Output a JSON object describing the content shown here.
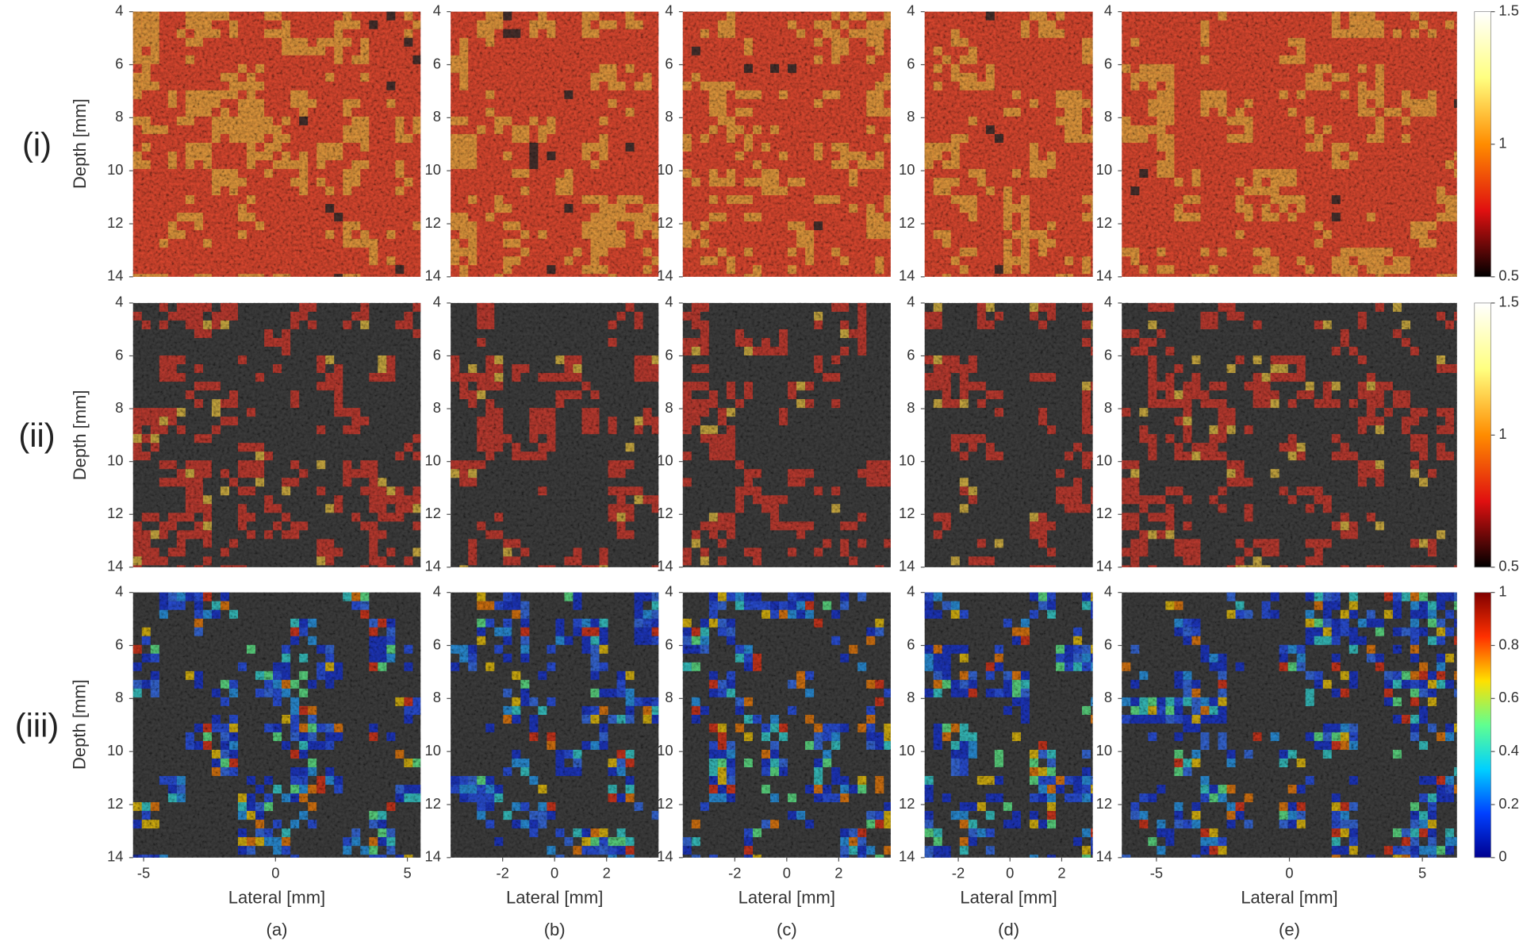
{
  "rows": [
    {
      "label": "(i)"
    },
    {
      "label": "(ii)"
    },
    {
      "label": "(iii)"
    }
  ],
  "columns": [
    {
      "label": "(a)",
      "xlim": [
        -5.4,
        5.5
      ],
      "xticks": [
        -5,
        0,
        5
      ]
    },
    {
      "label": "(b)",
      "xlim": [
        -4,
        4
      ],
      "xticks": [
        -2,
        0,
        2
      ]
    },
    {
      "label": "(c)",
      "xlim": [
        -4,
        4
      ],
      "xticks": [
        -2,
        0,
        2
      ]
    },
    {
      "label": "(d)",
      "xlim": [
        -3.3,
        3.2
      ],
      "xticks": [
        -2,
        0,
        2
      ]
    },
    {
      "label": "(e)",
      "xlim": [
        -6.3,
        6.3
      ],
      "xticks": [
        -5,
        0,
        5
      ]
    }
  ],
  "y_axis": {
    "label": "Depth [mm]",
    "ylim": [
      4,
      14
    ],
    "yticks": [
      4,
      6,
      8,
      10,
      12,
      14
    ]
  },
  "x_axis_label": "Lateral [mm]",
  "colorbars": [
    {
      "lim": [
        0.5,
        1.5
      ],
      "ticks": [
        0.5,
        1,
        1.5
      ],
      "colors": [
        "#000000",
        "#e01010",
        "#ff8c00",
        "#ffff80",
        "#ffffff"
      ]
    },
    {
      "lim": [
        0.5,
        1.5
      ],
      "ticks": [
        0.5,
        1,
        1.5
      ],
      "colors": [
        "#000000",
        "#e01010",
        "#ff8c00",
        "#ffff80",
        "#ffffff"
      ]
    },
    {
      "lim": [
        0,
        1
      ],
      "ticks": [
        0,
        0.2,
        0.4,
        0.6,
        0.8,
        1
      ],
      "colors": [
        "#00008f",
        "#0040ff",
        "#00d0ff",
        "#60ff90",
        "#ffe000",
        "#ff3000",
        "#800000"
      ]
    }
  ]
}
